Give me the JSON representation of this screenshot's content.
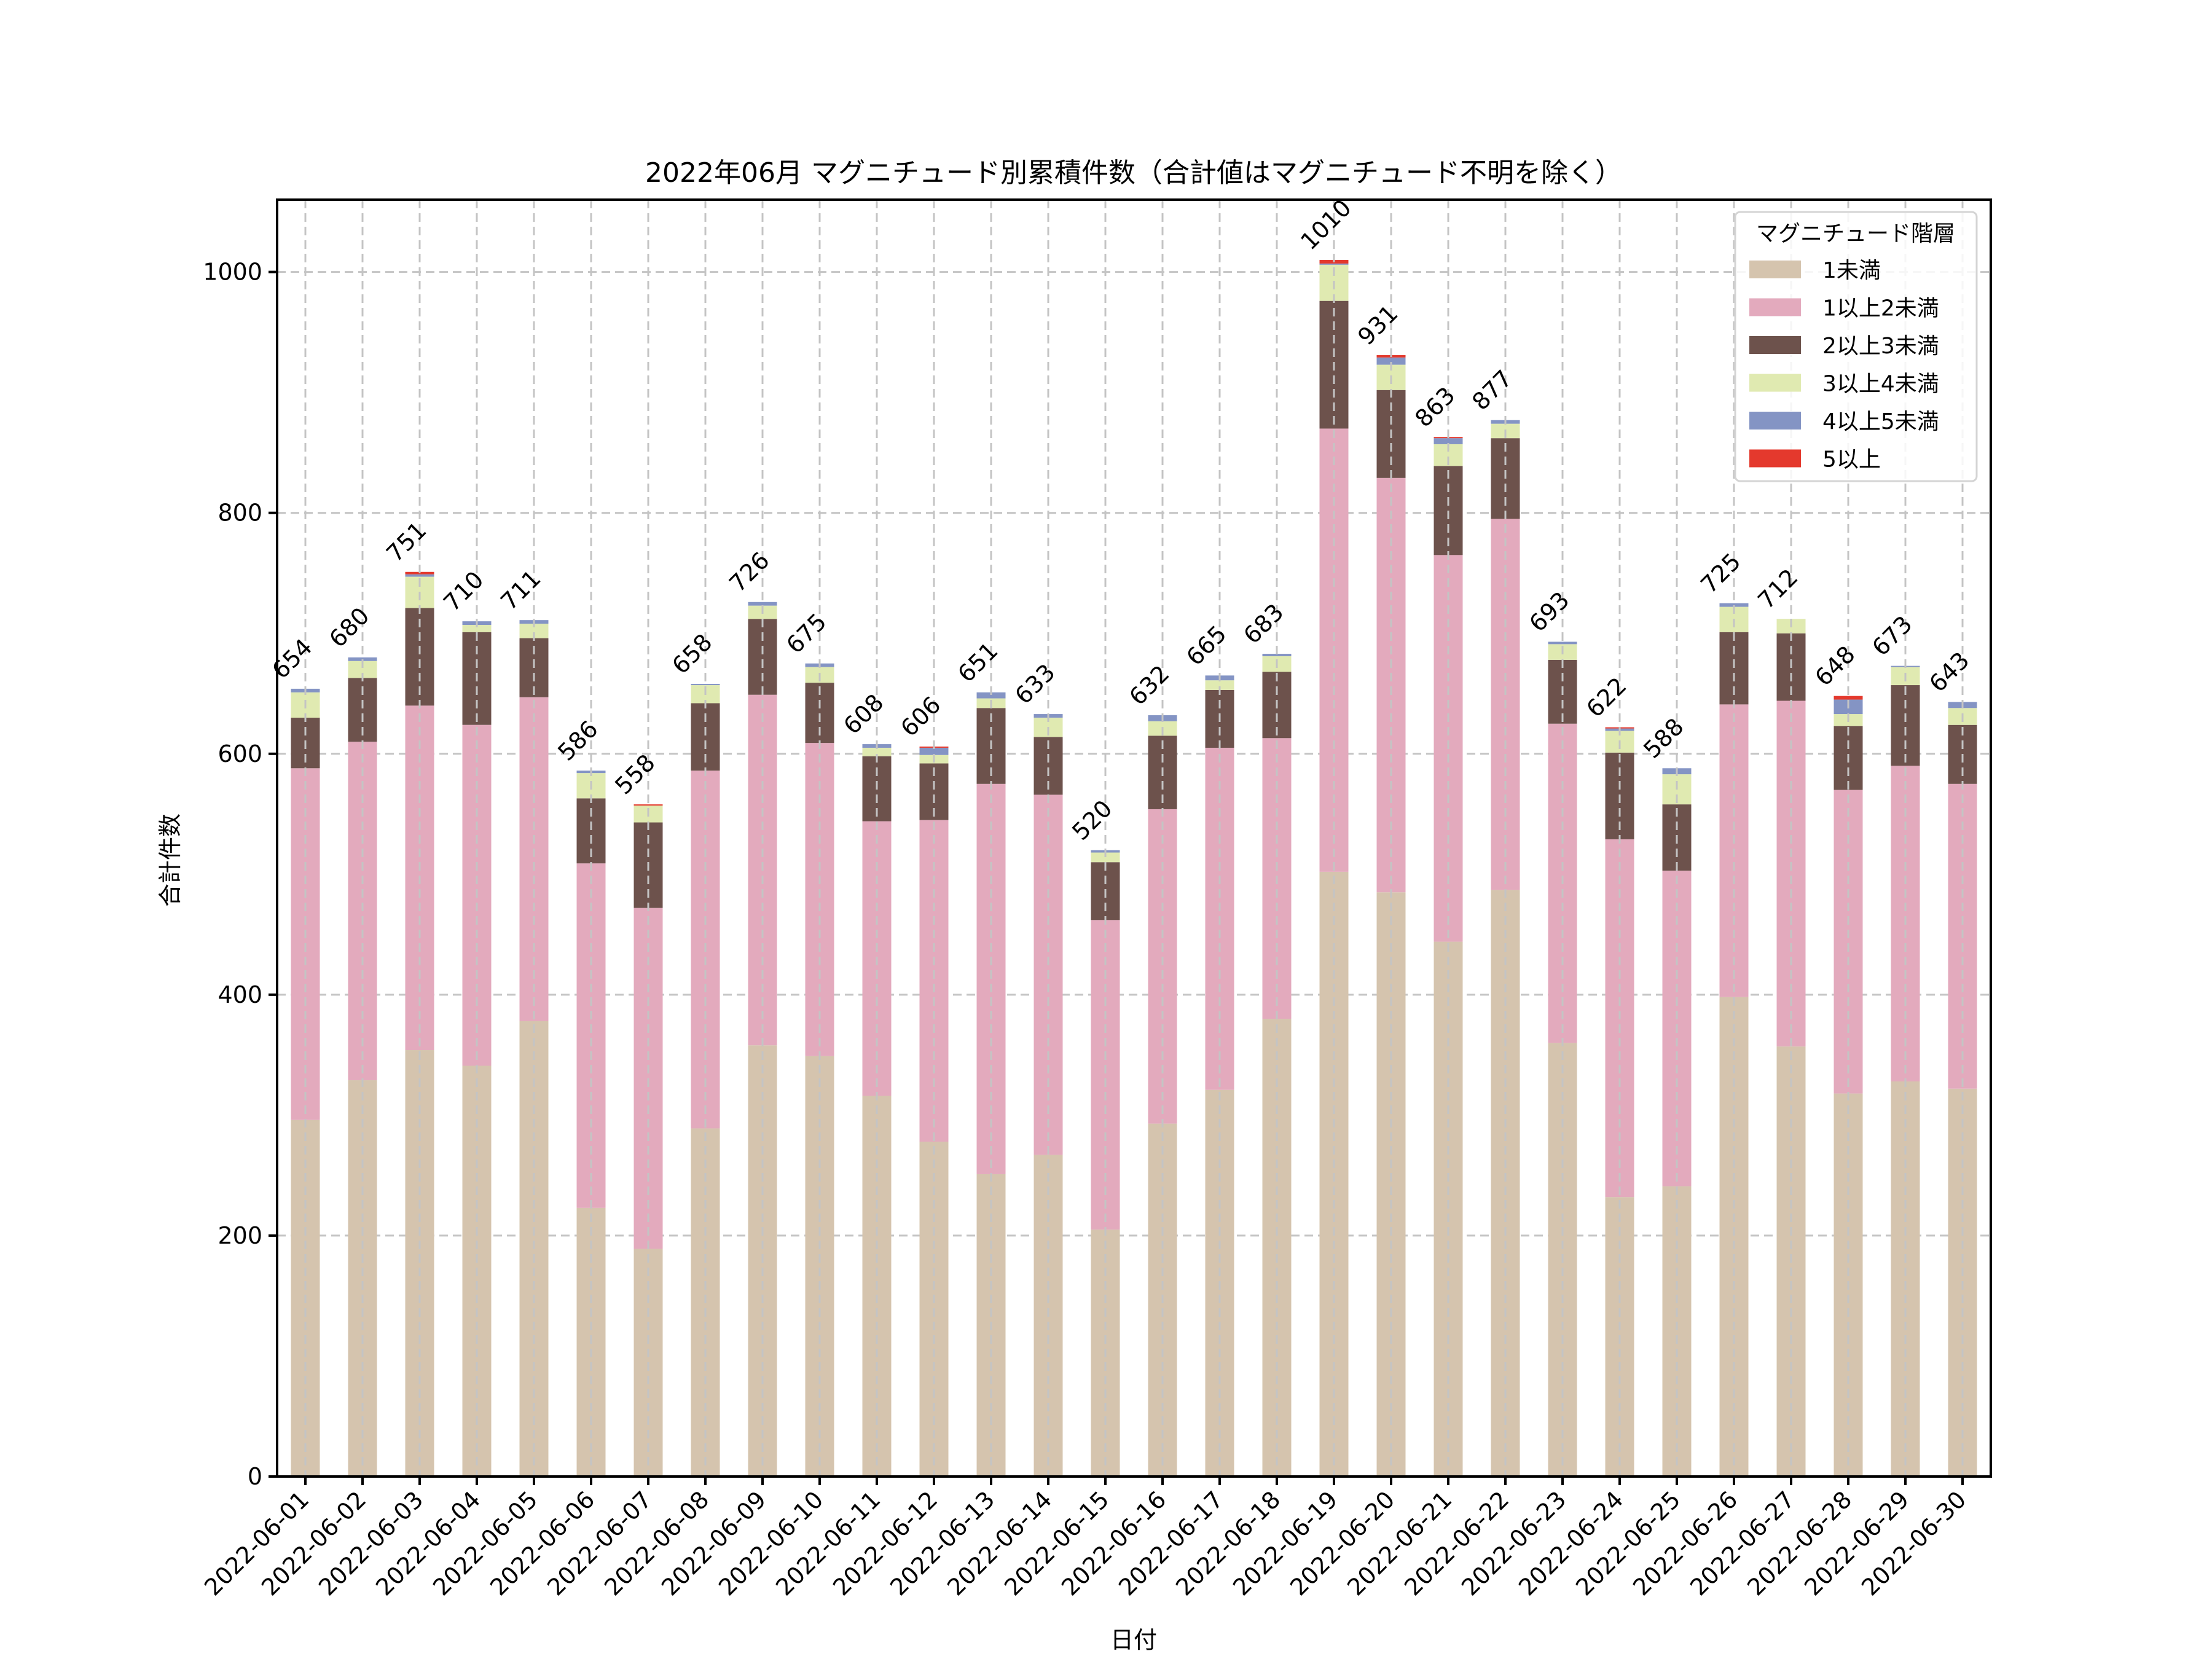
{
  "chart_data": {
    "type": "bar",
    "stacked": true,
    "title": "2022年06月 マグニチュード別累積件数（合計値はマグニチュード不明を除く）",
    "xlabel": "日付",
    "ylabel": "合計件数",
    "ylim": [
      0,
      1060
    ],
    "yticks": [
      0,
      200,
      400,
      600,
      800,
      1000
    ],
    "grid": true,
    "legend": {
      "title": "マグニチュード階層",
      "placement": "top-right"
    },
    "categories": [
      "2022-06-01",
      "2022-06-02",
      "2022-06-03",
      "2022-06-04",
      "2022-06-05",
      "2022-06-06",
      "2022-06-07",
      "2022-06-08",
      "2022-06-09",
      "2022-06-10",
      "2022-06-11",
      "2022-06-12",
      "2022-06-13",
      "2022-06-14",
      "2022-06-15",
      "2022-06-16",
      "2022-06-17",
      "2022-06-18",
      "2022-06-19",
      "2022-06-20",
      "2022-06-21",
      "2022-06-22",
      "2022-06-23",
      "2022-06-24",
      "2022-06-25",
      "2022-06-26",
      "2022-06-27",
      "2022-06-28",
      "2022-06-29",
      "2022-06-30"
    ],
    "series": [
      {
        "name": "1未満",
        "color": "#d5c4ae",
        "values": [
          296,
          329,
          354,
          341,
          378,
          223,
          189,
          289,
          358,
          349,
          316,
          278,
          251,
          267,
          205,
          293,
          321,
          380,
          502,
          485,
          444,
          487,
          360,
          232,
          241,
          398,
          357,
          318,
          328,
          322
        ]
      },
      {
        "name": "1以上2未満",
        "color": "#e3aabd",
        "values": [
          292,
          281,
          286,
          283,
          269,
          286,
          283,
          297,
          291,
          260,
          228,
          267,
          324,
          299,
          257,
          261,
          284,
          233,
          368,
          344,
          321,
          308,
          265,
          297,
          262,
          243,
          287,
          252,
          262,
          253
        ]
      },
      {
        "name": "2以上3未満",
        "color": "#6d524c",
        "values": [
          42,
          53,
          81,
          77,
          49,
          54,
          71,
          56,
          63,
          50,
          54,
          47,
          63,
          48,
          48,
          61,
          48,
          55,
          106,
          73,
          74,
          67,
          53,
          72,
          55,
          60,
          56,
          53,
          67,
          49
        ]
      },
      {
        "name": "3以上4未満",
        "color": "#e0eab1",
        "values": [
          21,
          14,
          26,
          6,
          12,
          21,
          14,
          15,
          11,
          13,
          7,
          7,
          8,
          16,
          8,
          12,
          8,
          13,
          30,
          21,
          18,
          12,
          13,
          18,
          25,
          21,
          12,
          10,
          15,
          14
        ]
      },
      {
        "name": "4以上5未満",
        "color": "#8494c4",
        "values": [
          3,
          3,
          2,
          3,
          3,
          2,
          0,
          1,
          3,
          3,
          3,
          6,
          5,
          3,
          2,
          5,
          4,
          2,
          1,
          6,
          5,
          3,
          2,
          2,
          5,
          3,
          0,
          12,
          1,
          5
        ]
      },
      {
        "name": "5以上",
        "color": "#e4392d",
        "values": [
          0,
          0,
          2,
          0,
          0,
          0,
          1,
          0,
          0,
          0,
          0,
          1,
          0,
          0,
          0,
          0,
          0,
          0,
          3,
          2,
          1,
          0,
          0,
          1,
          0,
          0,
          0,
          3,
          0,
          0
        ]
      }
    ],
    "totals": [
      654,
      680,
      751,
      710,
      711,
      586,
      558,
      658,
      726,
      675,
      608,
      606,
      651,
      633,
      520,
      632,
      665,
      683,
      1010,
      931,
      863,
      877,
      693,
      622,
      588,
      725,
      712,
      648,
      673,
      643
    ]
  }
}
